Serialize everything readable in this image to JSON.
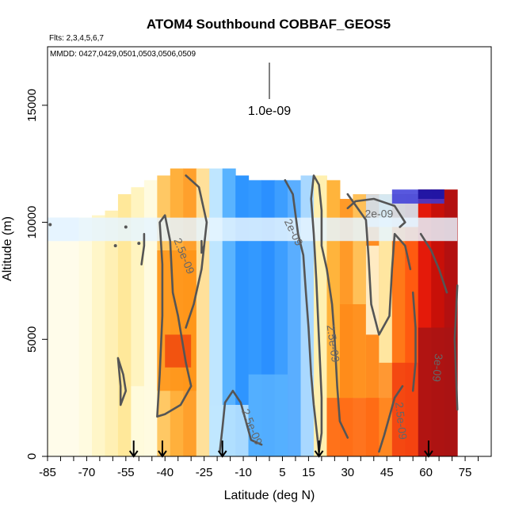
{
  "chart_data": {
    "type": "heatmap",
    "title": "ATOM4 Southbound COBBAF_GEOS5",
    "subtitle_flights": "Flts: 2,3,4,5,6,7",
    "subtitle_dates": "MMDD: 0427,0429,0501,0503,0506,0509",
    "xlabel": "Latitude (deg N)",
    "ylabel": "Altitude (m)",
    "xlim": [
      -85,
      85
    ],
    "ylim": [
      0,
      17500
    ],
    "x_ticks": [
      -85,
      -70,
      -55,
      -40,
      -25,
      -10,
      5,
      15,
      30,
      45,
      60,
      75
    ],
    "y_ticks": [
      0,
      5000,
      10000,
      15000
    ],
    "colorbar_label": "1.0e-09",
    "contour_labels": [
      "2.5e-09",
      "2e-09",
      "2.5e-09",
      "2e-09",
      "2.5e-09",
      "2.5e-09",
      "3e-09"
    ],
    "flight_arrows_lat": [
      -52,
      -41,
      -18,
      19,
      61
    ],
    "columns": [
      {
        "x0": -73,
        "x1": -68,
        "y0": 0,
        "y1": 10200,
        "color": "#fffbe0"
      },
      {
        "x0": -68,
        "x1": -63,
        "y0": 0,
        "y1": 10300,
        "color": "#fff6c8"
      },
      {
        "x0": -63,
        "x1": -58,
        "y0": 0,
        "y1": 10500,
        "color": "#fff0b4"
      },
      {
        "x0": -58,
        "x1": -53,
        "y0": 0,
        "y1": 11200,
        "color": "#ffe89a"
      },
      {
        "x0": -53,
        "x1": -48,
        "y0": 0,
        "y1": 11500,
        "color": "#fff4c0"
      },
      {
        "x0": -48,
        "x1": -43,
        "y0": 0,
        "y1": 11800,
        "color": "#fffbe0"
      },
      {
        "x0": -43,
        "x1": -38,
        "y0": 0,
        "y1": 12000,
        "color": "#ffc864"
      },
      {
        "x0": -38,
        "x1": -33,
        "y0": 0,
        "y1": 12300,
        "color": "#ffb03c"
      },
      {
        "x0": -33,
        "x1": -28,
        "y0": 0,
        "y1": 12300,
        "color": "#ffa02c"
      },
      {
        "x0": -28,
        "x1": -23,
        "y0": 0,
        "y1": 12300,
        "color": "#ffe09a"
      },
      {
        "x0": -23,
        "x1": -18,
        "y0": 0,
        "y1": 12300,
        "color": "#bfe6ff"
      },
      {
        "x0": -18,
        "x1": -13,
        "y0": 0,
        "y1": 12300,
        "color": "#59b3ff"
      },
      {
        "x0": -13,
        "x1": -8,
        "y0": 0,
        "y1": 12000,
        "color": "#2e95ff"
      },
      {
        "x0": -8,
        "x1": -3,
        "y0": 0,
        "y1": 11800,
        "color": "#3399ff"
      },
      {
        "x0": -3,
        "x1": 2,
        "y0": 0,
        "y1": 11800,
        "color": "#2b90ff"
      },
      {
        "x0": 2,
        "x1": 7,
        "y0": 0,
        "y1": 11800,
        "color": "#3d9eff"
      },
      {
        "x0": 7,
        "x1": 12,
        "y0": 0,
        "y1": 11800,
        "color": "#5aaeff"
      },
      {
        "x0": 12,
        "x1": 17,
        "y0": 0,
        "y1": 12000,
        "color": "#a9d8ff"
      },
      {
        "x0": 17,
        "x1": 22,
        "y0": 0,
        "y1": 12000,
        "color": "#fff0b0"
      },
      {
        "x0": 22,
        "x1": 27,
        "y0": 0,
        "y1": 11800,
        "color": "#ffb43c"
      },
      {
        "x0": 27,
        "x1": 32,
        "y0": 0,
        "y1": 11000,
        "color": "#ff9a28"
      },
      {
        "x0": 32,
        "x1": 37,
        "y0": 0,
        "y1": 11200,
        "color": "#ffc058"
      },
      {
        "x0": 37,
        "x1": 42,
        "y0": 0,
        "y1": 11200,
        "color": "#ff8c20"
      },
      {
        "x0": 42,
        "x1": 47,
        "y0": 0,
        "y1": 11200,
        "color": "#ffe6a0"
      },
      {
        "x0": 47,
        "x1": 52,
        "y0": 0,
        "y1": 11200,
        "color": "#ff7818"
      },
      {
        "x0": 52,
        "x1": 57,
        "y0": 0,
        "y1": 11200,
        "color": "#ff5a10"
      },
      {
        "x0": 57,
        "x1": 62,
        "y0": 0,
        "y1": 11400,
        "color": "#e41a0a"
      },
      {
        "x0": 62,
        "x1": 67,
        "y0": 0,
        "y1": 11400,
        "color": "#c81008"
      },
      {
        "x0": 67,
        "x1": 72,
        "y0": 0,
        "y1": 11400,
        "color": "#b31010"
      }
    ],
    "patches": [
      {
        "x0": -85,
        "x1": -73,
        "y0": 0,
        "y1": 9200,
        "color": "#fffce6"
      },
      {
        "x0": -85,
        "x1": -73,
        "y0": 9200,
        "y1": 10200,
        "color": "#dff0fb"
      },
      {
        "x0": -43,
        "x1": -28,
        "y0": 2800,
        "y1": 8800,
        "color": "#ff9418"
      },
      {
        "x0": -40,
        "x1": -30,
        "y0": 3800,
        "y1": 5200,
        "color": "#f0460e"
      },
      {
        "x0": -53,
        "x1": -48,
        "y0": 0,
        "y1": 3000,
        "color": "#fffbe0"
      },
      {
        "x0": -23,
        "x1": -8,
        "y0": 0,
        "y1": 2200,
        "color": "#bfe6ff"
      },
      {
        "x0": -8,
        "x1": 7,
        "y0": 0,
        "y1": 3500,
        "color": "#59b3ff"
      },
      {
        "x0": 22,
        "x1": 47,
        "y0": 0,
        "y1": 2500,
        "color": "#ff6614"
      },
      {
        "x0": 27,
        "x1": 37,
        "y0": 2500,
        "y1": 6500,
        "color": "#ff8a18"
      },
      {
        "x0": 37,
        "x1": 42,
        "y0": 5200,
        "y1": 9000,
        "color": "#fffbe0"
      },
      {
        "x0": 42,
        "x1": 47,
        "y0": 0,
        "y1": 4000,
        "color": "#ff8a20"
      },
      {
        "x0": 47,
        "x1": 57,
        "y0": 0,
        "y1": 4000,
        "color": "#f24010"
      },
      {
        "x0": 57,
        "x1": 72,
        "y0": 0,
        "y1": 5500,
        "color": "#a81414"
      },
      {
        "x0": 37,
        "x1": 57,
        "y0": 9800,
        "y1": 11200,
        "color": "#cfe8ff"
      },
      {
        "x0": 47,
        "x1": 67,
        "y0": 10800,
        "y1": 11400,
        "color": "#3b3bd8"
      },
      {
        "x0": 57,
        "x1": 67,
        "y0": 11000,
        "y1": 11400,
        "color": "#1a10a0"
      },
      {
        "x0": -85,
        "x1": 72,
        "y0": 9200,
        "y1": 10200,
        "color": "#e6f4ff"
      }
    ],
    "contours": [
      {
        "points": [
          [
            -57,
            2200
          ],
          [
            -55,
            2800
          ],
          [
            -56,
            3500
          ],
          [
            -58,
            4200
          ],
          [
            -57,
            3000
          ],
          [
            -57,
            2200
          ]
        ]
      },
      {
        "points": [
          [
            -49,
            8200
          ],
          [
            -48,
            9000
          ],
          [
            -48,
            9500
          ]
        ]
      },
      {
        "points": [
          [
            -43,
            1700
          ],
          [
            -42,
            3500
          ],
          [
            -41,
            6000
          ],
          [
            -41,
            8200
          ],
          [
            -42,
            10000
          ],
          [
            -40,
            10300
          ],
          [
            -38,
            9200
          ],
          [
            -37,
            7000
          ],
          [
            -35,
            6000
          ],
          [
            -32,
            4000
          ],
          [
            -30,
            3000
          ],
          [
            -34,
            2200
          ],
          [
            -40,
            1800
          ],
          [
            -43,
            1700
          ]
        ]
      },
      {
        "points": [
          [
            -32,
            12000
          ],
          [
            -27,
            11500
          ],
          [
            -24,
            10000
          ],
          [
            -26,
            8000
          ],
          [
            -29,
            6500
          ],
          [
            -32,
            5500
          ]
        ]
      },
      {
        "points": [
          [
            -26,
            9200
          ],
          [
            -26,
            8700
          ],
          [
            -25,
            9000
          ]
        ]
      },
      {
        "points": [
          [
            -19,
            200
          ],
          [
            -18,
            1200
          ],
          [
            -17,
            2300
          ],
          [
            -14,
            2800
          ],
          [
            -11,
            2300
          ],
          [
            -9,
            1500
          ],
          [
            -7,
            700
          ],
          [
            -3,
            500
          ]
        ]
      },
      {
        "points": [
          [
            6,
            11800
          ],
          [
            9,
            11200
          ],
          [
            11,
            9500
          ],
          [
            13,
            8600
          ],
          [
            14,
            7000
          ],
          [
            15,
            5500
          ],
          [
            16,
            3500
          ],
          [
            17,
            2200
          ],
          [
            18,
            1200
          ],
          [
            19,
            200
          ]
        ]
      },
      {
        "points": [
          [
            19,
            200
          ],
          [
            20,
            1000
          ],
          [
            20,
            2500
          ],
          [
            19,
            5000
          ],
          [
            18,
            7500
          ],
          [
            17,
            9500
          ],
          [
            16,
            11000
          ],
          [
            17,
            12000
          ],
          [
            19,
            11600
          ],
          [
            20,
            10500
          ],
          [
            20,
            9000
          ],
          [
            22,
            8000
          ],
          [
            24,
            6500
          ],
          [
            25,
            5000
          ],
          [
            26,
            3000
          ],
          [
            27,
            1500
          ],
          [
            30,
            800
          ]
        ]
      },
      {
        "points": [
          [
            30,
            10600
          ],
          [
            33,
            10900
          ],
          [
            40,
            11000
          ],
          [
            48,
            10700
          ],
          [
            52,
            10000
          ],
          [
            50,
            9800
          ]
        ]
      },
      {
        "points": [
          [
            30,
            11200
          ],
          [
            37,
            10100
          ],
          [
            38,
            8500
          ],
          [
            39,
            6500
          ],
          [
            42,
            5200
          ],
          [
            46,
            6000
          ],
          [
            47,
            8000
          ],
          [
            48,
            9500
          ],
          [
            52,
            9000
          ],
          [
            54,
            8000
          ]
        ]
      },
      {
        "points": [
          [
            55,
            2800
          ],
          [
            56,
            4000
          ],
          [
            56,
            5500
          ],
          [
            55,
            7000
          ]
        ]
      },
      {
        "points": [
          [
            58,
            9500
          ],
          [
            62,
            8800
          ],
          [
            65,
            8000
          ],
          [
            68,
            7000
          ]
        ]
      },
      {
        "points": [
          [
            72,
            7300
          ],
          [
            71,
            5000
          ],
          [
            72,
            2000
          ]
        ]
      },
      {
        "points": [
          [
            42,
            200
          ],
          [
            44,
            900
          ],
          [
            46,
            1700
          ],
          [
            48,
            2500
          ],
          [
            51,
            3000
          ]
        ]
      }
    ],
    "contour_label_positions": [
      {
        "text_index": 0,
        "x": -34,
        "y": 8500,
        "rotate": 68
      },
      {
        "text_index": 1,
        "x": 8,
        "y": 9500,
        "rotate": 64
      },
      {
        "text_index": 2,
        "x": 23,
        "y": 4800,
        "rotate": 82
      },
      {
        "text_index": 3,
        "x": 42,
        "y": 10200,
        "rotate": 0
      },
      {
        "text_index": 4,
        "x": -8,
        "y": 1200,
        "rotate": 68
      },
      {
        "text_index": 5,
        "x": 49,
        "y": 1500,
        "rotate": 84
      },
      {
        "text_index": 6,
        "x": 63,
        "y": 3800,
        "rotate": 95
      }
    ],
    "outline_points": [
      [
        -85,
        9200
      ],
      [
        -85,
        10200
      ],
      [
        -63,
        10500
      ],
      [
        -48,
        11800
      ],
      [
        -43,
        12300
      ],
      [
        -23,
        12300
      ],
      [
        -13,
        12000
      ],
      [
        17,
        12000
      ],
      [
        22,
        11800
      ],
      [
        27,
        11000
      ],
      [
        47,
        11200
      ],
      [
        57,
        11400
      ],
      [
        72,
        11400
      ],
      [
        72,
        0
      ]
    ],
    "dots": [
      [
        -84,
        9900
      ],
      [
        -55,
        9800
      ],
      [
        -59,
        9000
      ],
      [
        -50,
        9100
      ]
    ]
  }
}
